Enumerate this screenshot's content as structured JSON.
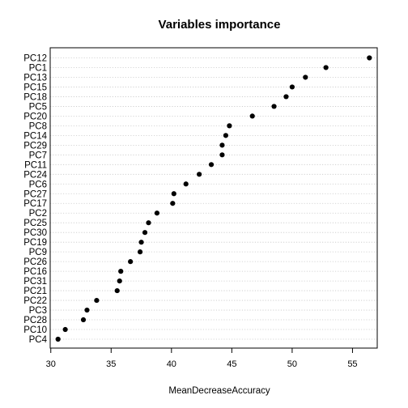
{
  "chart_data": {
    "type": "scatter",
    "title": "Variables importance",
    "xlabel": "MeanDecreaseAccuracy",
    "ylabel": "",
    "xlim": [
      29.95,
      57.05
    ],
    "xticks": [
      30,
      35,
      40,
      45,
      50,
      55
    ],
    "grid": true,
    "categories": [
      "PC12",
      "PC1",
      "PC13",
      "PC15",
      "PC18",
      "PC5",
      "PC20",
      "PC8",
      "PC14",
      "PC29",
      "PC7",
      "PC11",
      "PC24",
      "PC6",
      "PC27",
      "PC17",
      "PC2",
      "PC25",
      "PC30",
      "PC19",
      "PC9",
      "PC26",
      "PC16",
      "PC31",
      "PC21",
      "PC22",
      "PC3",
      "PC28",
      "PC10",
      "PC4"
    ],
    "values": [
      56.4,
      52.8,
      51.1,
      50.0,
      49.5,
      48.5,
      46.7,
      44.8,
      44.5,
      44.2,
      44.2,
      43.3,
      42.3,
      41.2,
      40.2,
      40.1,
      38.8,
      38.1,
      37.8,
      37.5,
      37.4,
      36.6,
      35.8,
      35.7,
      35.5,
      33.8,
      33.0,
      32.7,
      31.2,
      30.6
    ]
  }
}
